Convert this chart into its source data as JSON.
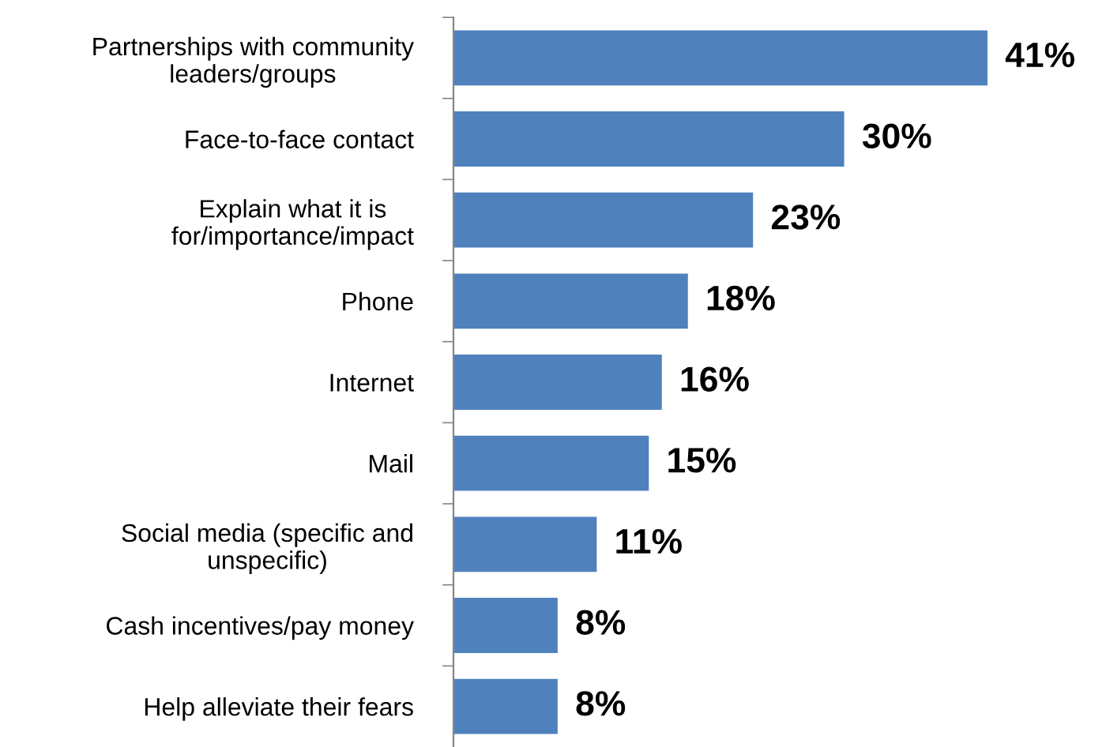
{
  "chart_data": {
    "type": "bar",
    "orientation": "horizontal",
    "categories": [
      "Partnerships with community\nleaders/groups",
      "Face-to-face contact",
      "Explain what it is\nfor/importance/impact",
      "Phone",
      "Internet",
      "Mail",
      "Social media (specific and\nunspecific)",
      "Cash incentives/pay money",
      "Help alleviate their fears"
    ],
    "values": [
      41,
      30,
      23,
      18,
      16,
      15,
      11,
      8,
      8
    ],
    "value_labels": [
      "41%",
      "30%",
      "23%",
      "18%",
      "16%",
      "15%",
      "11%",
      "8%",
      "8%"
    ],
    "color": "#4f81bd",
    "grid": false,
    "legend": false
  }
}
